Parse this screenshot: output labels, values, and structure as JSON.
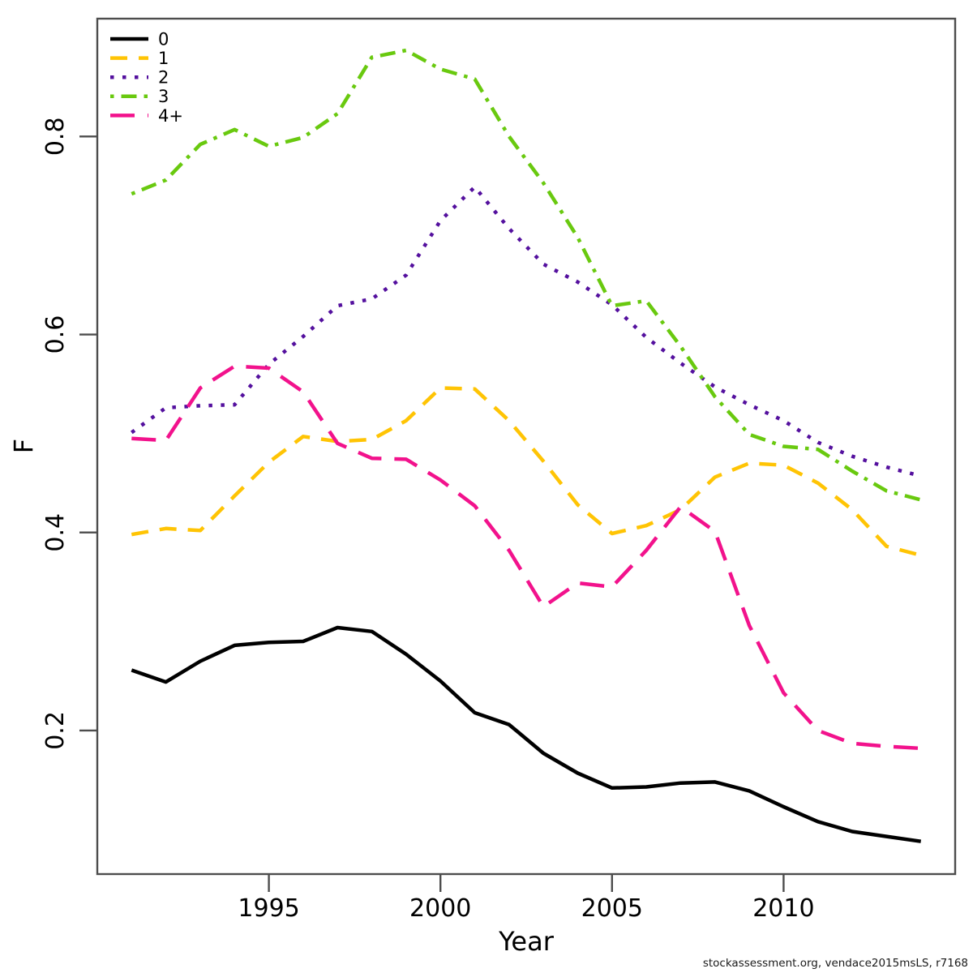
{
  "watermark": "stockassessment.org, vendace2015msLS, r7168",
  "chart_data": {
    "type": "line",
    "title": "",
    "xlabel": "Year",
    "ylabel": "F",
    "grid": false,
    "legend_position": "top-left",
    "xlim": [
      1990.0,
      2015.0
    ],
    "ylim": [
      0.055,
      0.919
    ],
    "x_ticks": [
      1995,
      2000,
      2005,
      2010
    ],
    "y_ticks": [
      0.2,
      0.4,
      0.6,
      0.8
    ],
    "x": [
      1991,
      1992,
      1993,
      1994,
      1995,
      1996,
      1997,
      1998,
      1999,
      2000,
      2001,
      2002,
      2003,
      2004,
      2005,
      2006,
      2007,
      2008,
      2009,
      2010,
      2011,
      2012,
      2013,
      2014
    ],
    "series": [
      {
        "name": "0",
        "color": "#000000",
        "linetype": "solid",
        "values": [
          0.261,
          0.249,
          0.27,
          0.286,
          0.289,
          0.29,
          0.304,
          0.3,
          0.277,
          0.25,
          0.218,
          0.206,
          0.177,
          0.157,
          0.142,
          0.143,
          0.147,
          0.148,
          0.139,
          0.123,
          0.108,
          0.098,
          0.093,
          0.088
        ]
      },
      {
        "name": "1",
        "color": "#FFC404",
        "linetype": "dashed",
        "values": [
          0.398,
          0.404,
          0.402,
          0.437,
          0.471,
          0.497,
          0.492,
          0.494,
          0.513,
          0.546,
          0.545,
          0.513,
          0.472,
          0.428,
          0.399,
          0.407,
          0.423,
          0.456,
          0.47,
          0.468,
          0.45,
          0.423,
          0.386,
          0.377
        ]
      },
      {
        "name": "2",
        "color": "#54109E",
        "linetype": "dotted",
        "values": [
          0.501,
          0.526,
          0.528,
          0.529,
          0.57,
          0.598,
          0.629,
          0.636,
          0.66,
          0.715,
          0.749,
          0.707,
          0.671,
          0.653,
          0.63,
          0.597,
          0.571,
          0.547,
          0.529,
          0.513,
          0.491,
          0.477,
          0.466,
          0.457
        ]
      },
      {
        "name": "3",
        "color": "#69C90F",
        "linetype": "dashdot",
        "values": [
          0.742,
          0.756,
          0.792,
          0.807,
          0.79,
          0.799,
          0.823,
          0.88,
          0.887,
          0.868,
          0.858,
          0.8,
          0.753,
          0.698,
          0.629,
          0.634,
          0.588,
          0.537,
          0.499,
          0.487,
          0.484,
          0.462,
          0.442,
          0.433
        ]
      },
      {
        "name": "4+",
        "color": "#F2128C",
        "linetype": "longdash",
        "values": [
          0.495,
          0.493,
          0.546,
          0.568,
          0.566,
          0.542,
          0.49,
          0.475,
          0.474,
          0.453,
          0.427,
          0.382,
          0.325,
          0.349,
          0.345,
          0.382,
          0.426,
          0.401,
          0.306,
          0.238,
          0.2,
          0.187,
          0.184,
          0.182
        ]
      }
    ]
  }
}
